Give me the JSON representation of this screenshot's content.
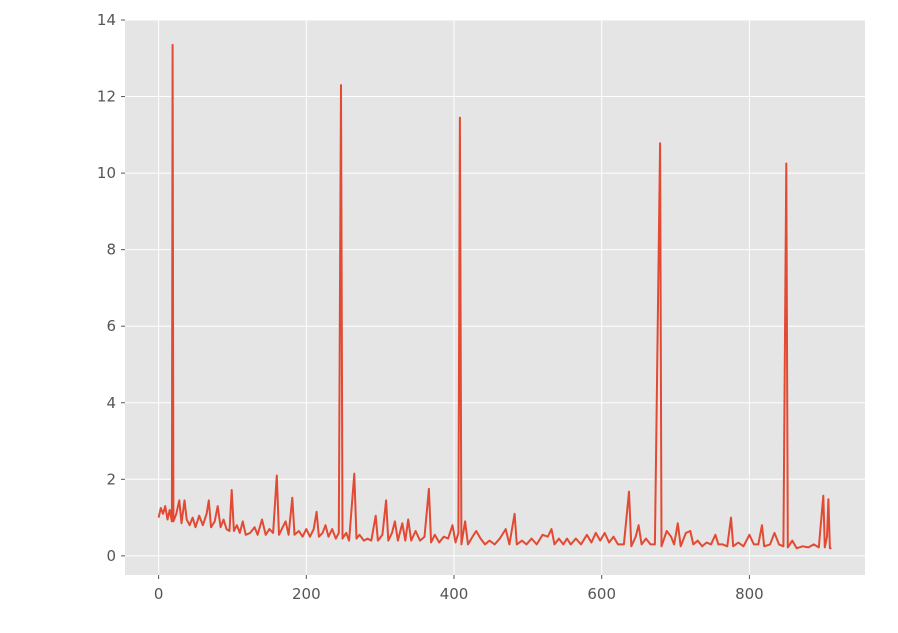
{
  "chart_data": {
    "type": "line",
    "title": "",
    "xlabel": "",
    "ylabel": "",
    "style": "ggplot",
    "grid": true,
    "legend": "none",
    "xlim": [
      -45.5,
      956.5
    ],
    "ylim": [
      -0.5,
      14.0
    ],
    "x_ticks": [
      0,
      200,
      400,
      600,
      800
    ],
    "y_ticks": [
      0,
      2,
      4,
      6,
      8,
      10,
      12,
      14
    ],
    "colors": {
      "line": "#E24A33",
      "axes_bg": "#E5E5E5",
      "grid": "#FFFFFF",
      "tick_text": "#555555"
    },
    "series": [
      {
        "points": [
          [
            0,
            1.0
          ],
          [
            3,
            1.25
          ],
          [
            6,
            1.1
          ],
          [
            9,
            1.3
          ],
          [
            12,
            0.95
          ],
          [
            15,
            1.2
          ],
          [
            18,
            0.9
          ],
          [
            19,
            13.35
          ],
          [
            20,
            0.9
          ],
          [
            24,
            1.1
          ],
          [
            28,
            1.45
          ],
          [
            31,
            0.85
          ],
          [
            35,
            1.45
          ],
          [
            38,
            0.95
          ],
          [
            42,
            0.8
          ],
          [
            46,
            1.0
          ],
          [
            50,
            0.75
          ],
          [
            55,
            1.05
          ],
          [
            60,
            0.8
          ],
          [
            65,
            1.1
          ],
          [
            68,
            1.45
          ],
          [
            71,
            0.75
          ],
          [
            76,
            0.9
          ],
          [
            80,
            1.3
          ],
          [
            84,
            0.75
          ],
          [
            88,
            0.95
          ],
          [
            92,
            0.7
          ],
          [
            96,
            0.65
          ],
          [
            99,
            1.72
          ],
          [
            102,
            0.65
          ],
          [
            106,
            0.8
          ],
          [
            110,
            0.6
          ],
          [
            114,
            0.9
          ],
          [
            118,
            0.55
          ],
          [
            124,
            0.6
          ],
          [
            130,
            0.75
          ],
          [
            134,
            0.55
          ],
          [
            140,
            0.95
          ],
          [
            145,
            0.55
          ],
          [
            150,
            0.7
          ],
          [
            155,
            0.6
          ],
          [
            160,
            2.1
          ],
          [
            163,
            0.55
          ],
          [
            168,
            0.75
          ],
          [
            172,
            0.9
          ],
          [
            176,
            0.55
          ],
          [
            181,
            1.52
          ],
          [
            184,
            0.55
          ],
          [
            190,
            0.65
          ],
          [
            195,
            0.5
          ],
          [
            200,
            0.7
          ],
          [
            205,
            0.5
          ],
          [
            210,
            0.7
          ],
          [
            214,
            1.15
          ],
          [
            217,
            0.5
          ],
          [
            222,
            0.6
          ],
          [
            226,
            0.8
          ],
          [
            230,
            0.5
          ],
          [
            235,
            0.7
          ],
          [
            240,
            0.45
          ],
          [
            244,
            0.6
          ],
          [
            247,
            12.3
          ],
          [
            249,
            0.45
          ],
          [
            254,
            0.6
          ],
          [
            258,
            0.4
          ],
          [
            265,
            2.15
          ],
          [
            268,
            0.45
          ],
          [
            272,
            0.55
          ],
          [
            278,
            0.4
          ],
          [
            283,
            0.45
          ],
          [
            288,
            0.4
          ],
          [
            294,
            1.05
          ],
          [
            297,
            0.4
          ],
          [
            303,
            0.55
          ],
          [
            308,
            1.45
          ],
          [
            311,
            0.4
          ],
          [
            316,
            0.6
          ],
          [
            320,
            0.9
          ],
          [
            324,
            0.4
          ],
          [
            330,
            0.85
          ],
          [
            334,
            0.4
          ],
          [
            338,
            0.95
          ],
          [
            342,
            0.4
          ],
          [
            348,
            0.65
          ],
          [
            354,
            0.4
          ],
          [
            360,
            0.5
          ],
          [
            366,
            1.75
          ],
          [
            369,
            0.35
          ],
          [
            374,
            0.55
          ],
          [
            380,
            0.35
          ],
          [
            386,
            0.5
          ],
          [
            392,
            0.45
          ],
          [
            398,
            0.8
          ],
          [
            402,
            0.35
          ],
          [
            406,
            0.6
          ],
          [
            408,
            11.45
          ],
          [
            410,
            0.3
          ],
          [
            415,
            0.9
          ],
          [
            419,
            0.3
          ],
          [
            425,
            0.5
          ],
          [
            430,
            0.65
          ],
          [
            436,
            0.45
          ],
          [
            442,
            0.3
          ],
          [
            448,
            0.4
          ],
          [
            455,
            0.3
          ],
          [
            462,
            0.45
          ],
          [
            470,
            0.7
          ],
          [
            475,
            0.3
          ],
          [
            482,
            1.1
          ],
          [
            485,
            0.3
          ],
          [
            492,
            0.4
          ],
          [
            498,
            0.3
          ],
          [
            505,
            0.45
          ],
          [
            512,
            0.3
          ],
          [
            520,
            0.55
          ],
          [
            527,
            0.5
          ],
          [
            532,
            0.7
          ],
          [
            536,
            0.3
          ],
          [
            542,
            0.45
          ],
          [
            548,
            0.3
          ],
          [
            553,
            0.45
          ],
          [
            558,
            0.3
          ],
          [
            565,
            0.45
          ],
          [
            572,
            0.3
          ],
          [
            580,
            0.55
          ],
          [
            586,
            0.35
          ],
          [
            592,
            0.6
          ],
          [
            598,
            0.4
          ],
          [
            604,
            0.6
          ],
          [
            610,
            0.35
          ],
          [
            616,
            0.5
          ],
          [
            622,
            0.3
          ],
          [
            630,
            0.3
          ],
          [
            637,
            1.68
          ],
          [
            640,
            0.25
          ],
          [
            646,
            0.5
          ],
          [
            650,
            0.8
          ],
          [
            654,
            0.3
          ],
          [
            660,
            0.45
          ],
          [
            666,
            0.3
          ],
          [
            672,
            0.3
          ],
          [
            679,
            10.78
          ],
          [
            681,
            0.25
          ],
          [
            688,
            0.65
          ],
          [
            694,
            0.5
          ],
          [
            698,
            0.3
          ],
          [
            703,
            0.85
          ],
          [
            707,
            0.25
          ],
          [
            714,
            0.6
          ],
          [
            720,
            0.65
          ],
          [
            724,
            0.3
          ],
          [
            730,
            0.4
          ],
          [
            736,
            0.25
          ],
          [
            742,
            0.35
          ],
          [
            748,
            0.3
          ],
          [
            754,
            0.55
          ],
          [
            758,
            0.3
          ],
          [
            764,
            0.3
          ],
          [
            770,
            0.25
          ],
          [
            775,
            1.0
          ],
          [
            778,
            0.25
          ],
          [
            785,
            0.35
          ],
          [
            792,
            0.25
          ],
          [
            800,
            0.55
          ],
          [
            806,
            0.3
          ],
          [
            812,
            0.3
          ],
          [
            817,
            0.8
          ],
          [
            820,
            0.25
          ],
          [
            828,
            0.3
          ],
          [
            834,
            0.6
          ],
          [
            840,
            0.3
          ],
          [
            846,
            0.25
          ],
          [
            850,
            10.25
          ],
          [
            852,
            0.22
          ],
          [
            858,
            0.4
          ],
          [
            864,
            0.2
          ],
          [
            872,
            0.25
          ],
          [
            880,
            0.22
          ],
          [
            887,
            0.3
          ],
          [
            894,
            0.22
          ],
          [
            900,
            1.57
          ],
          [
            902,
            0.22
          ],
          [
            905,
            0.5
          ],
          [
            907,
            1.48
          ],
          [
            909,
            0.2
          ],
          [
            911,
            0.2
          ]
        ]
      }
    ]
  }
}
